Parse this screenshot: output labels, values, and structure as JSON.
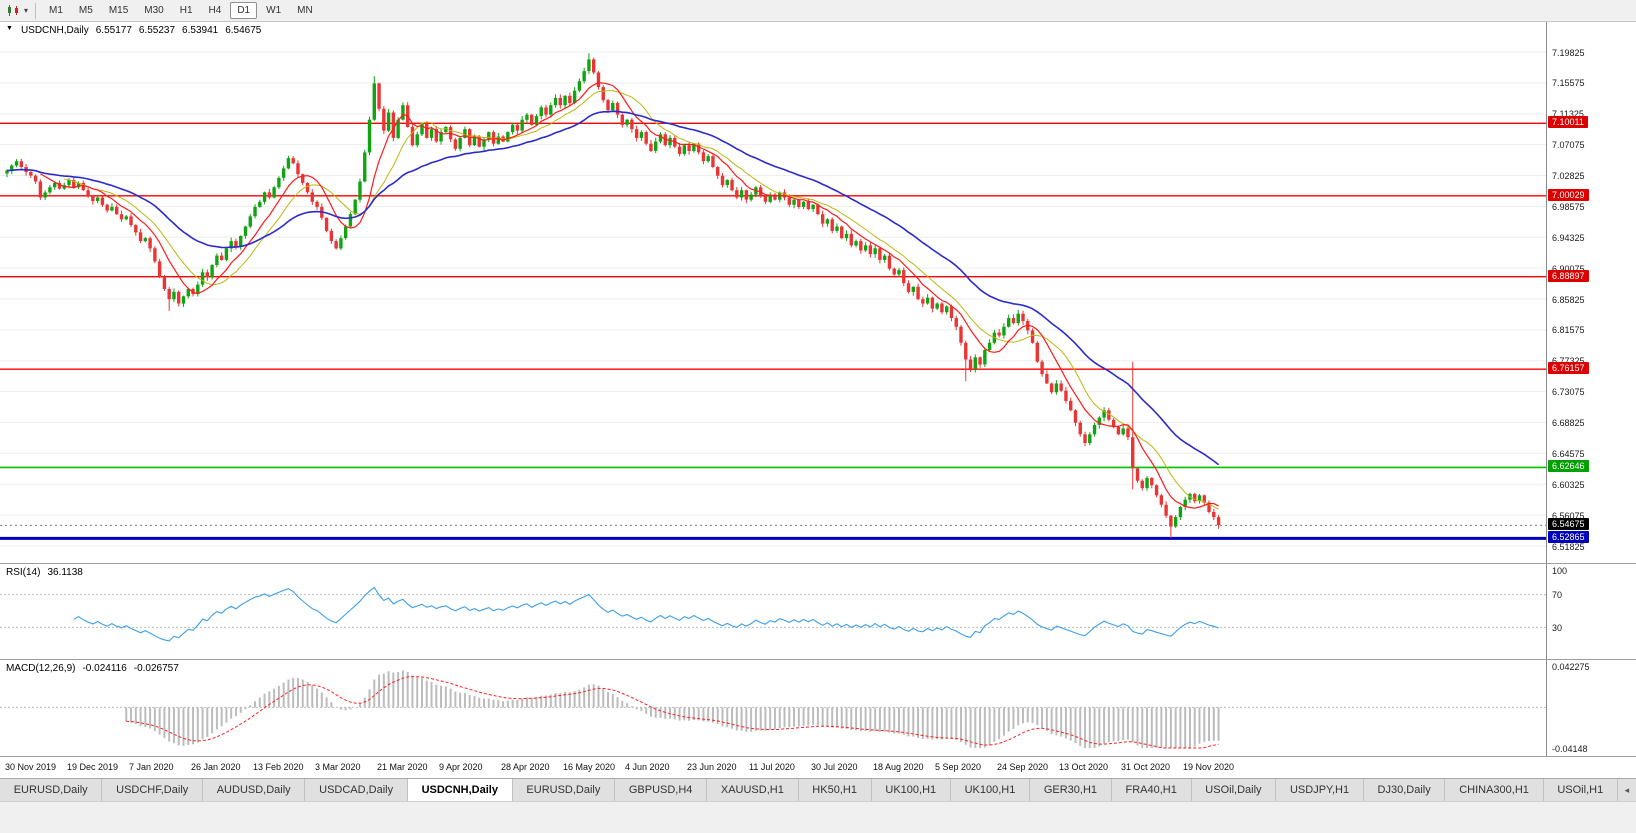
{
  "toolbar": {
    "timeframes": [
      "M1",
      "M5",
      "M15",
      "M30",
      "H1",
      "H4",
      "D1",
      "W1",
      "MN"
    ],
    "active_timeframe": "D1"
  },
  "chart_header": {
    "symbol": "USDCNH,Daily",
    "open": "6.55177",
    "high": "6.55237",
    "low": "6.53941",
    "close": "6.54675"
  },
  "price_axis": {
    "ticks": [
      "7.19825",
      "7.15575",
      "7.11325",
      "7.07075",
      "7.02825",
      "6.98575",
      "6.94325",
      "6.90075",
      "6.85825",
      "6.81575",
      "6.77325",
      "6.73075",
      "6.68825",
      "6.64575",
      "6.60325",
      "6.56075",
      "6.51825"
    ],
    "levels": [
      {
        "label": "7.10011",
        "color": "#dd0000"
      },
      {
        "label": "7.00029",
        "color": "#dd0000"
      },
      {
        "label": "6.88897",
        "color": "#dd0000"
      },
      {
        "label": "6.76157",
        "color": "#dd0000"
      },
      {
        "label": "6.62646",
        "color": "#00a000"
      },
      {
        "label": "6.52865",
        "color": "#0000bb"
      }
    ],
    "current": {
      "label": "6.54675",
      "color": "#000000"
    }
  },
  "rsi_panel": {
    "label": "RSI(14)",
    "value": "36.1138",
    "axis_labels": [
      "100",
      "70",
      "30"
    ]
  },
  "macd_panel": {
    "label": "MACD(12,26,9)",
    "value_main": "-0.024116",
    "value_signal": "-0.026757",
    "axis_top": "0.042275",
    "axis_bottom": "-0.04148"
  },
  "date_axis": {
    "labels": [
      "30 Nov 2019",
      "19 Dec 2019",
      "7 Jan 2020",
      "26 Jan 2020",
      "13 Feb 2020",
      "3 Mar 2020",
      "21 Mar 2020",
      "9 Apr 2020",
      "28 Apr 2020",
      "16 May 2020",
      "4 Jun 2020",
      "23 Jun 2020",
      "11 Jul 2020",
      "30 Jul 2020",
      "18 Aug 2020",
      "5 Sep 2020",
      "24 Sep 2020",
      "13 Oct 2020",
      "31 Oct 2020",
      "19 Nov 2020"
    ]
  },
  "tabs": {
    "items": [
      "EURUSD,Daily",
      "USDCHF,Daily",
      "AUDUSD,Daily",
      "USDCAD,Daily",
      "USDCNH,Daily",
      "EURUSD,Daily",
      "GBPUSD,H4",
      "XAUUSD,H1",
      "HK50,H1",
      "UK100,H1",
      "UK100,H1",
      "GER30,H1",
      "FRA40,H1",
      "USOil,Daily",
      "USDJPY,H1",
      "DJ30,Daily",
      "CHINA300,H1",
      "USOil,H1"
    ],
    "active_index": 4,
    "scroll_left_icon": "◂"
  },
  "colors": {
    "up": "#12a312",
    "down": "#e93535",
    "ma_fast": "#ff1a1a",
    "ma_mid": "#b9b910",
    "ma_slow": "#2b2bcc",
    "rsi": "#3d9fe8",
    "macd_hist": "#bcbcbc",
    "macd_signal": "#ff2020",
    "grid": "#ededed",
    "level_grid": "#bdbdbd"
  },
  "chart_data": {
    "type": "candlestick",
    "symbol": "USDCNH",
    "timeframe": "Daily",
    "title": "USDCNH,Daily",
    "ohlc_current": {
      "open": 6.55177,
      "high": 6.55237,
      "low": 6.53941,
      "close": 6.54675
    },
    "price_range": {
      "max": 7.19825,
      "min": 6.51825,
      "tick_step": 0.0425
    },
    "bars_per_label": 13,
    "horizontal_lines": [
      {
        "price": 7.10011,
        "color": "#ff0000",
        "width": 1.3
      },
      {
        "price": 7.00029,
        "color": "#ff0000",
        "width": 1.3
      },
      {
        "price": 6.88897,
        "color": "#ff0000",
        "width": 1.3
      },
      {
        "price": 6.76157,
        "color": "#ff0000",
        "width": 1.3
      },
      {
        "price": 6.62646,
        "color": "#00c000",
        "width": 1.6
      },
      {
        "price": 6.52865,
        "color": "#0000c0",
        "width": 3
      }
    ],
    "indicators": {
      "ma_fast_period": 8,
      "ma_mid_period": 13,
      "ma_slow_period": 34,
      "rsi_period": 14,
      "rsi_value": 36.1138,
      "rsi_levels": [
        70,
        30
      ],
      "macd_params": [
        12,
        26,
        9
      ],
      "macd_value": -0.024116,
      "macd_signal_value": -0.026757,
      "macd_axis_max": 0.042275,
      "macd_axis_min": -0.04148
    },
    "closes": [
      7.035,
      7.042,
      7.048,
      7.04,
      7.033,
      7.028,
      7.02,
      6.998,
      7.005,
      7.012,
      7.018,
      7.01,
      7.015,
      7.022,
      7.012,
      7.018,
      7.008,
      7.0,
      6.993,
      6.998,
      6.988,
      6.98,
      6.985,
      6.975,
      6.968,
      6.972,
      6.96,
      6.95,
      6.938,
      6.942,
      6.928,
      6.91,
      6.888,
      6.872,
      6.858,
      6.868,
      6.852,
      6.862,
      6.872,
      6.865,
      6.878,
      6.895,
      6.888,
      6.905,
      6.918,
      6.912,
      6.928,
      6.938,
      6.93,
      6.945,
      6.958,
      6.972,
      6.985,
      6.992,
      7.005,
      6.998,
      7.012,
      7.025,
      7.038,
      7.052,
      7.045,
      7.03,
      7.018,
      7.005,
      6.992,
      6.985,
      6.97,
      6.952,
      6.938,
      6.928,
      6.942,
      6.958,
      6.975,
      6.995,
      7.02,
      7.06,
      7.105,
      7.155,
      7.12,
      7.09,
      7.115,
      7.08,
      7.105,
      7.125,
      7.095,
      7.07,
      7.085,
      7.1,
      7.08,
      7.092,
      7.075,
      7.088,
      7.095,
      7.078,
      7.065,
      7.08,
      7.092,
      7.07,
      7.082,
      7.068,
      7.078,
      7.088,
      7.072,
      7.082,
      7.075,
      7.088,
      7.098,
      7.09,
      7.105,
      7.112,
      7.098,
      7.11,
      7.122,
      7.112,
      7.125,
      7.135,
      7.125,
      7.138,
      7.128,
      7.145,
      7.158,
      7.172,
      7.188,
      7.17,
      7.15,
      7.132,
      7.118,
      7.128,
      7.112,
      7.098,
      7.105,
      7.092,
      7.08,
      7.088,
      7.072,
      7.062,
      7.075,
      7.085,
      7.07,
      7.08,
      7.068,
      7.058,
      7.07,
      7.062,
      7.072,
      7.06,
      7.048,
      7.055,
      7.04,
      7.028,
      7.015,
      7.022,
      7.008,
      6.998,
      7.008,
      6.995,
      7.002,
      7.012,
      7.0,
      6.992,
      7.002,
      6.995,
      7.005,
      6.998,
      6.988,
      6.995,
      6.985,
      6.992,
      6.982,
      6.988,
      6.975,
      6.962,
      6.968,
      6.952,
      6.958,
      6.942,
      6.948,
      6.932,
      6.938,
      6.925,
      6.932,
      6.92,
      6.928,
      6.912,
      6.918,
      6.9,
      6.892,
      6.898,
      6.88,
      6.868,
      6.875,
      6.858,
      6.852,
      6.86,
      6.845,
      6.852,
      6.84,
      6.848,
      6.832,
      6.82,
      6.798,
      6.775,
      6.762,
      6.778,
      6.768,
      6.788,
      6.798,
      6.812,
      6.808,
      6.82,
      6.832,
      6.825,
      6.838,
      6.828,
      6.815,
      6.798,
      6.772,
      6.755,
      6.742,
      6.73,
      6.742,
      6.732,
      6.718,
      6.705,
      6.688,
      6.672,
      6.66,
      6.672,
      6.685,
      6.695,
      6.705,
      6.692,
      6.682,
      6.672,
      6.68,
      6.668,
      6.625,
      6.608,
      6.598,
      6.612,
      6.602,
      6.588,
      6.575,
      6.56,
      6.545,
      6.558,
      6.572,
      6.582,
      6.59,
      6.58,
      6.588,
      6.578,
      6.565,
      6.558,
      6.547
    ],
    "wick_overrides": [
      {
        "i": 34,
        "l": 6.842
      },
      {
        "i": 77,
        "h": 7.165
      },
      {
        "i": 122,
        "h": 7.1965
      },
      {
        "i": 201,
        "l": 6.745
      },
      {
        "i": 236,
        "h": 6.772,
        "l": 6.596
      },
      {
        "i": 244,
        "l": 6.529
      }
    ]
  }
}
